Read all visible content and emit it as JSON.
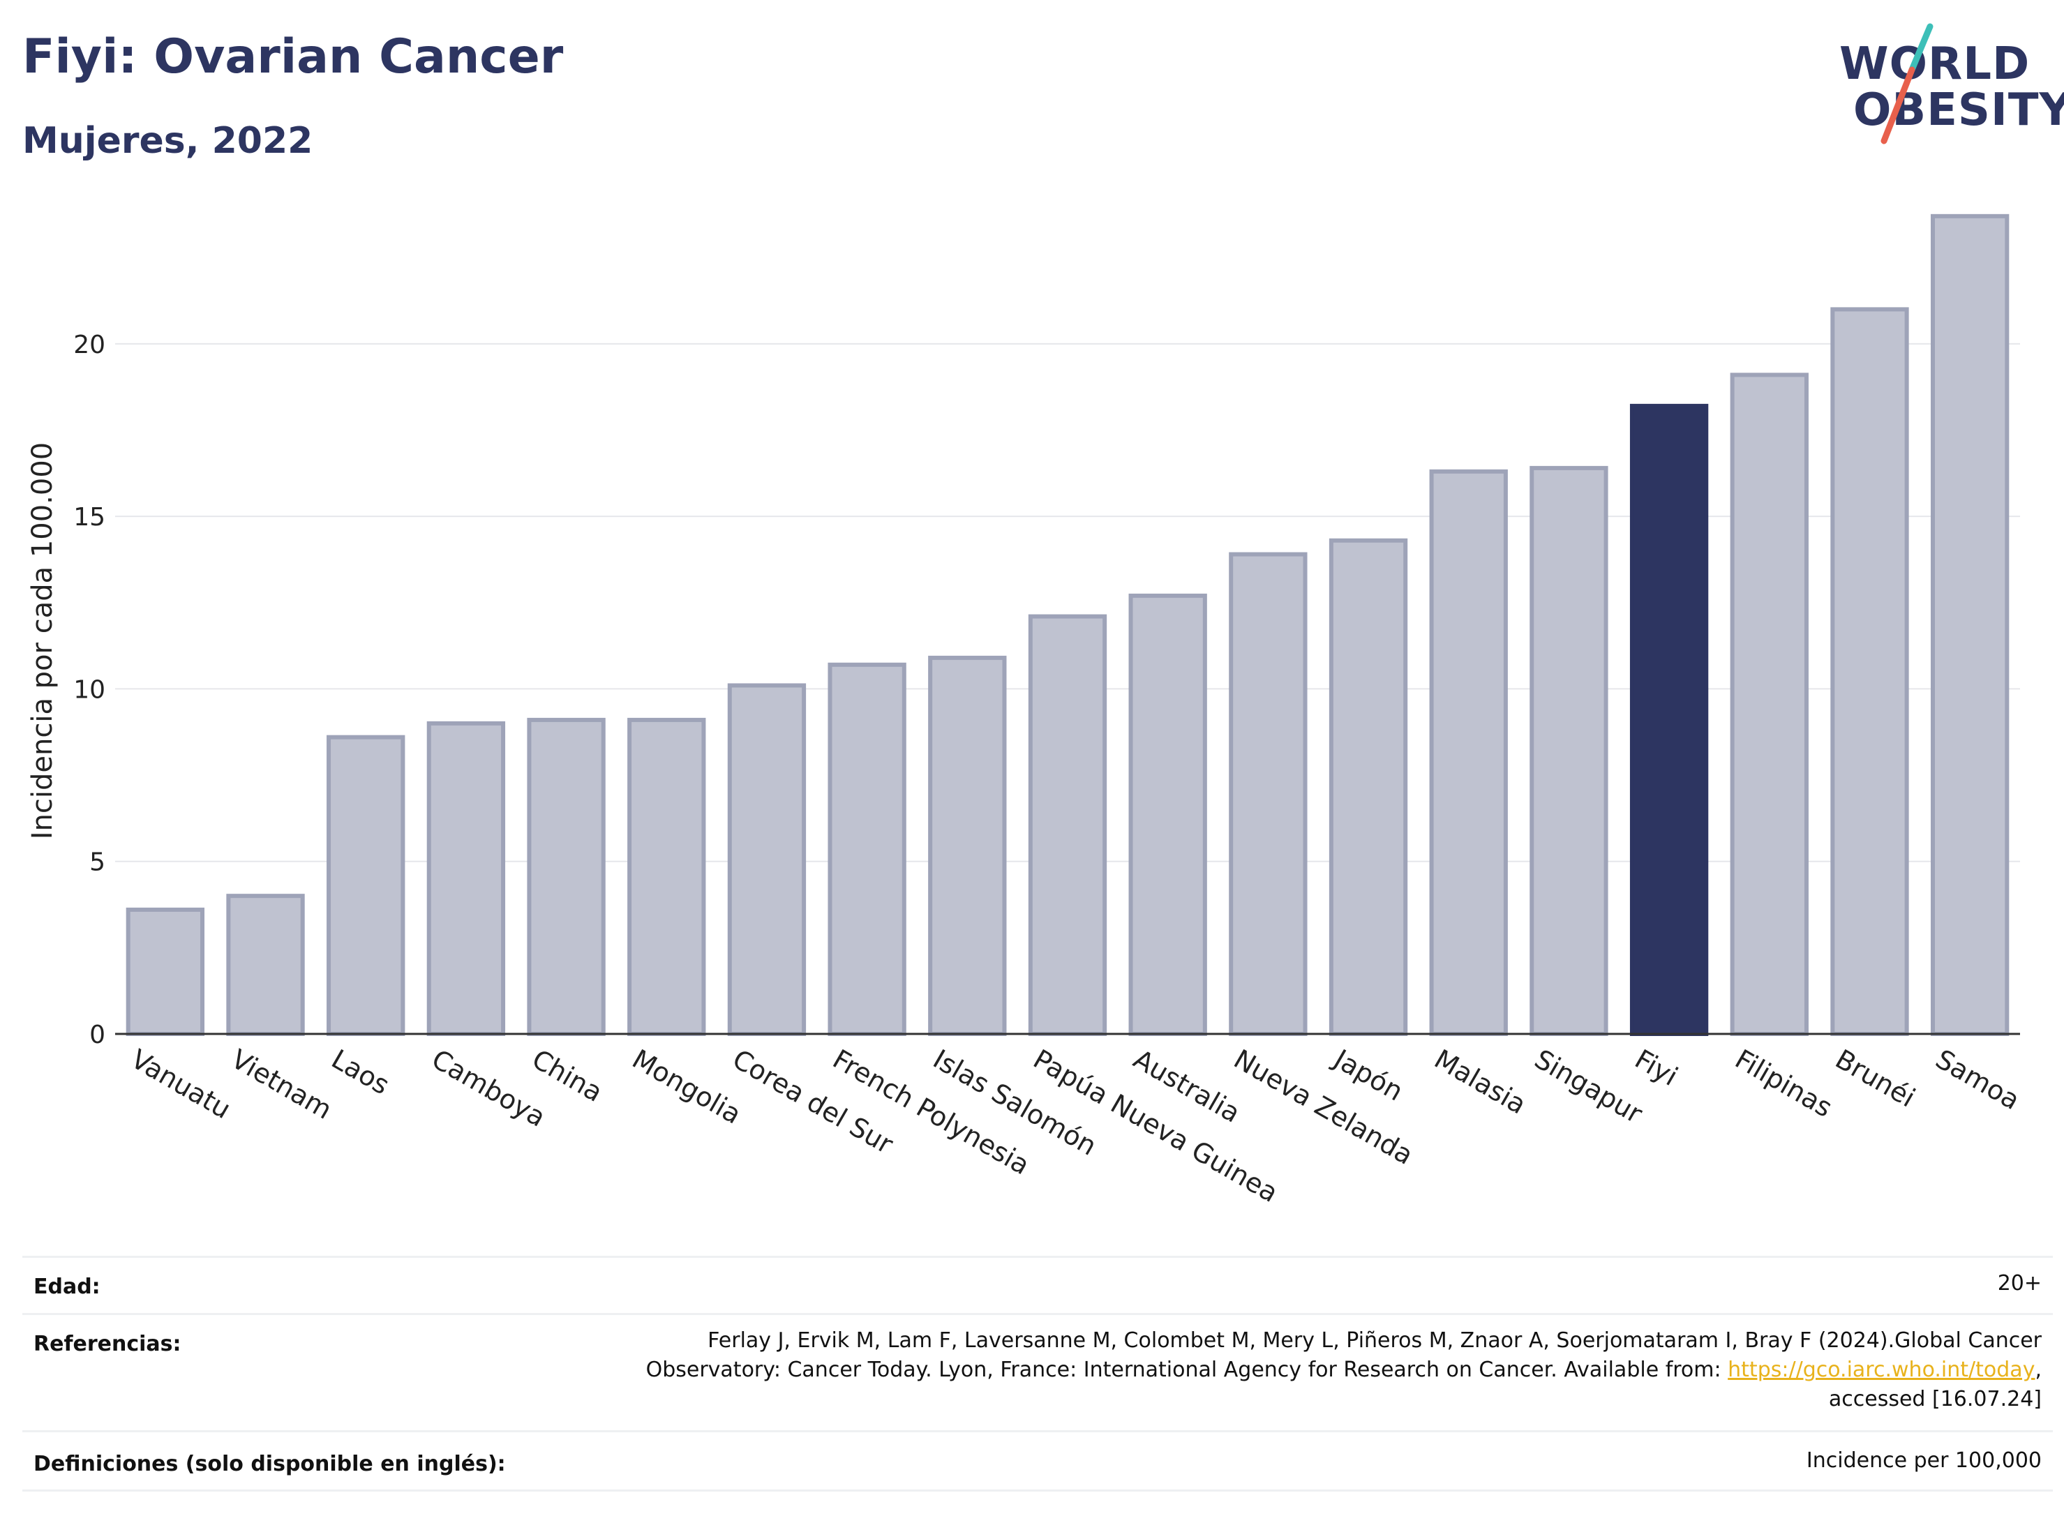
{
  "header": {
    "title": "Fiyi: Ovarian Cancer",
    "subtitle": "Mujeres, 2022"
  },
  "logo": {
    "line1": "WORLD",
    "line2": "OBESITY",
    "accent_teal": "#3dbfb8",
    "accent_red": "#e8604c"
  },
  "chart_data": {
    "type": "bar",
    "ylabel": "Incidencia por cada 100.000",
    "xlabel": "",
    "ylim": [
      0,
      24
    ],
    "yticks": [
      0,
      5,
      10,
      15,
      20
    ],
    "grid": true,
    "categories": [
      "Vanuatu",
      "Vietnam",
      "Laos",
      "Camboya",
      "China",
      "Mongolia",
      "Corea del Sur",
      "French Polynesia",
      "Islas Salomón",
      "Papúa Nueva Guinea",
      "Australia",
      "Nueva Zelanda",
      "Japón",
      "Malasia",
      "Singapur",
      "Fiyi",
      "Filipinas",
      "Brunéi",
      "Samoa"
    ],
    "values": [
      3.6,
      4.0,
      8.6,
      9.0,
      9.1,
      9.1,
      10.1,
      10.7,
      10.9,
      12.1,
      12.7,
      13.9,
      14.3,
      16.3,
      16.4,
      18.2,
      19.1,
      21.0,
      23.7
    ],
    "highlight": "Fiyi",
    "colors": {
      "bar": "#bfc2d0",
      "bar_border": "#9ea3b8",
      "highlight": "#2d3561"
    }
  },
  "meta": {
    "age_label": "Edad:",
    "age_value": "20+",
    "ref_label": "Referencias:",
    "ref_line1": "Ferlay J, Ervik M, Lam F, Laversanne M, Colombet M, Mery L, Piñeros M, Znaor A, Soerjomataram I, Bray F (2024).Global Cancer",
    "ref_line2_pre": "Observatory: Cancer Today. Lyon, France: International Agency for Research on Cancer. Available from: ",
    "ref_link": "https://gco.iarc.who.int/today",
    "ref_line2_post": ",",
    "ref_line3": "accessed [16.07.24]",
    "def_label": "Definiciones (solo disponible en inglés):",
    "def_value": "Incidence per 100,000"
  }
}
